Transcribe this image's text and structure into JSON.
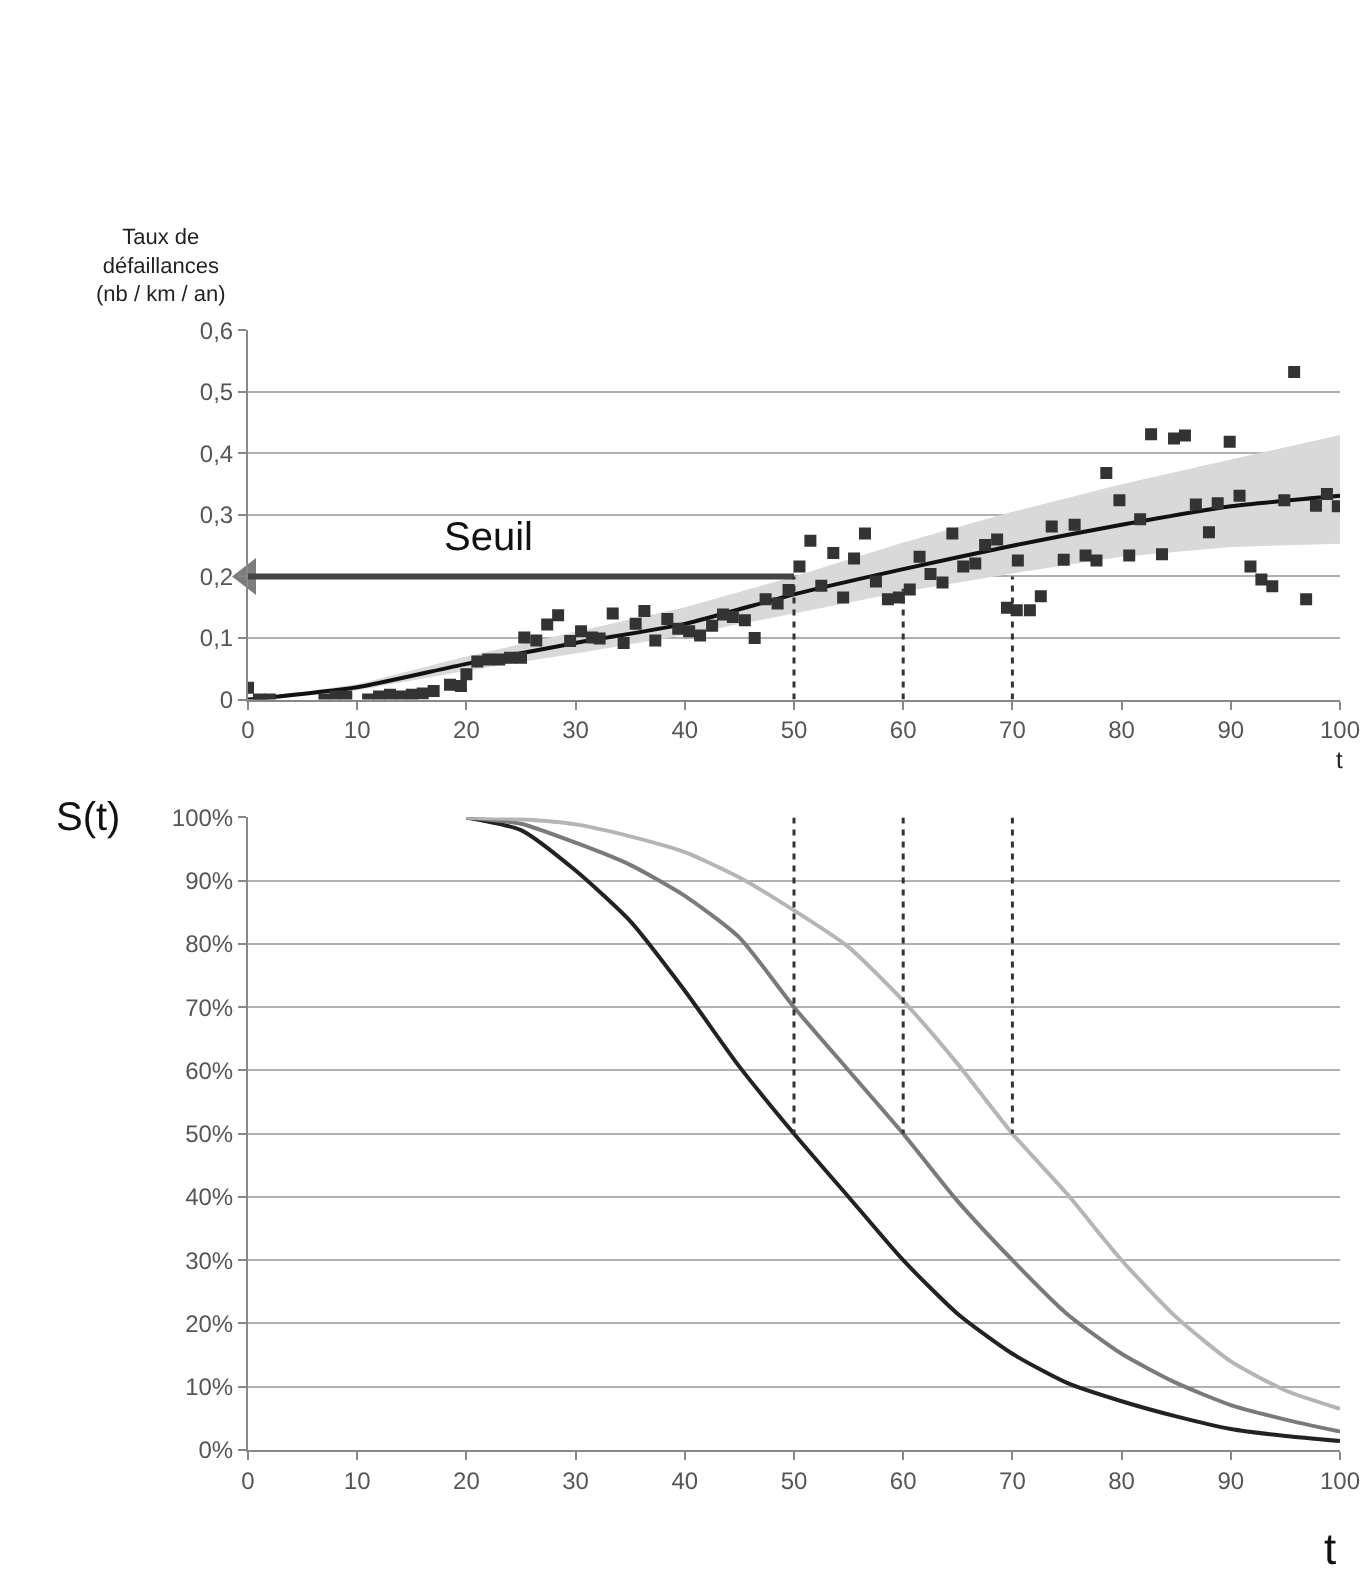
{
  "chart_data": [
    {
      "type": "scatter",
      "ylabel": "Taux de\ndéfaillances\n(nb / km / an)",
      "xlabel": "t",
      "xlim": [
        0,
        100
      ],
      "ylim": [
        0,
        0.6
      ],
      "xticks": [
        0,
        10,
        20,
        30,
        40,
        50,
        60,
        70,
        80,
        90,
        100
      ],
      "yticks": [
        0,
        {
          "value": 0.1,
          "label": "0,1"
        },
        {
          "value": 0.2,
          "label": "0,2"
        },
        {
          "value": 0.3,
          "label": "0,3"
        },
        {
          "value": 0.4,
          "label": "0,4"
        },
        {
          "value": 0.5,
          "label": "0,5"
        },
        {
          "value": 0.6,
          "label": "0,6"
        }
      ],
      "grid": "y",
      "annotations": [
        {
          "text": "Seuil",
          "x": 22,
          "y": 0.2
        }
      ],
      "series": [
        {
          "type": "line",
          "color": "#111111",
          "line_style": "solid",
          "marker": "none",
          "x": [
            0,
            10,
            20,
            30,
            40,
            50,
            60,
            70,
            80,
            90,
            100
          ],
          "values": [
            0,
            0.02,
            0.058,
            0.092,
            0.123,
            0.171,
            0.212,
            0.25,
            0.284,
            0.314,
            0.331
          ],
          "lower": [
            0,
            0.015,
            0.047,
            0.075,
            0.105,
            0.14,
            0.175,
            0.205,
            0.232,
            0.248,
            0.253
          ],
          "upper": [
            0,
            0.025,
            0.07,
            0.11,
            0.15,
            0.2,
            0.255,
            0.305,
            0.35,
            0.39,
            0.43
          ]
        },
        {
          "type": "scatter",
          "color": "#333333",
          "marker": "square",
          "x": [
            0,
            1,
            2,
            7,
            8,
            9,
            11,
            12,
            13,
            14,
            15,
            16,
            17,
            18.5,
            19.5,
            20,
            21,
            22,
            23,
            24,
            25,
            25.3,
            26.4,
            27.4,
            28.4,
            29.5,
            30.5,
            31.5,
            32.2,
            33.4,
            34.4,
            35.5,
            36.3,
            37.3,
            38.4,
            39.4,
            40.4,
            41.4,
            42.5,
            43.5,
            44.4,
            45.5,
            46.4,
            47.4,
            48.5,
            49.5,
            50.5,
            51.5,
            52.5,
            53.6,
            54.5,
            55.5,
            56.5,
            57.5,
            58.6,
            59.6,
            60.6,
            61.5,
            62.5,
            63.6,
            64.5,
            65.5,
            66.6,
            67.5,
            68.6,
            69.5,
            70.4,
            70.5,
            71.6,
            72.6,
            73.6,
            74.7,
            75.7,
            76.7,
            77.7,
            78.6,
            79.8,
            80.7,
            81.7,
            82.7,
            83.7,
            84.8,
            85.8,
            86.8,
            88,
            88.8,
            89.9,
            90.8,
            91.8,
            92.8,
            93.8,
            94.9,
            95.8,
            96.9,
            97.8,
            98.8,
            99.8
          ],
          "values": [
            0.019,
            0,
            0,
            0,
            0.005,
            0.005,
            0,
            0.005,
            0.008,
            0.005,
            0.008,
            0.01,
            0.014,
            0.024,
            0.022,
            0.041,
            0.062,
            0.065,
            0.065,
            0.068,
            0.068,
            0.101,
            0.096,
            0.122,
            0.137,
            0.095,
            0.111,
            0.101,
            0.099,
            0.14,
            0.092,
            0.123,
            0.144,
            0.096,
            0.131,
            0.115,
            0.111,
            0.104,
            0.12,
            0.138,
            0.134,
            0.129,
            0.1,
            0.163,
            0.156,
            0.178,
            0.216,
            0.258,
            0.185,
            0.238,
            0.166,
            0.229,
            0.27,
            0.192,
            0.163,
            0.166,
            0.179,
            0.232,
            0.204,
            0.19,
            0.27,
            0.216,
            0.221,
            0.251,
            0.26,
            0.149,
            0.145,
            0.226,
            0.145,
            0.168,
            0.281,
            0.227,
            0.284,
            0.234,
            0.226,
            0.368,
            0.324,
            0.234,
            0.293,
            0.431,
            0.236,
            0.424,
            0.429,
            0.317,
            0.272,
            0.319,
            0.419,
            0.331,
            0.216,
            0.195,
            0.184,
            0.324,
            0.532,
            0.163,
            0.315,
            0.334,
            0.314
          ]
        },
        {
          "type": "line",
          "color": "#444444",
          "line_style": "solid",
          "marker": "triangle",
          "x": [
            0,
            50
          ],
          "values": [
            0.2,
            0.2
          ]
        },
        {
          "type": "line",
          "color": "#333333",
          "line_style": "dotted",
          "marker": "none",
          "x": [
            50,
            50
          ],
          "values": [
            0,
            0.2
          ]
        },
        {
          "type": "line",
          "color": "#333333",
          "line_style": "dotted",
          "marker": "none",
          "x": [
            60,
            60
          ],
          "values": [
            0,
            0.18
          ]
        },
        {
          "type": "line",
          "color": "#333333",
          "line_style": "dotted",
          "marker": "none",
          "x": [
            70,
            70
          ],
          "values": [
            0,
            0.2
          ]
        }
      ]
    },
    {
      "type": "line",
      "ylabel": "S(t)",
      "xlabel": "t",
      "xlim": [
        0,
        100
      ],
      "ylim": [
        0,
        100
      ],
      "xticks": [
        0,
        10,
        20,
        30,
        40,
        50,
        60,
        70,
        80,
        90,
        100
      ],
      "yticks": [
        {
          "value": 0,
          "label": "0%"
        },
        {
          "value": 10,
          "label": "10%"
        },
        {
          "value": 20,
          "label": "20%"
        },
        {
          "value": 30,
          "label": "30%"
        },
        {
          "value": 40,
          "label": "40%"
        },
        {
          "value": 50,
          "label": "50%"
        },
        {
          "value": 60,
          "label": "60%"
        },
        {
          "value": 70,
          "label": "70%"
        },
        {
          "value": 80,
          "label": "80%"
        },
        {
          "value": 90,
          "label": "90%"
        },
        {
          "value": 100,
          "label": "100%"
        }
      ],
      "grid": "y",
      "series": [
        {
          "color": "#222222",
          "line_style": "solid",
          "marker": "none",
          "x": [
            20,
            25,
            30,
            35,
            40,
            45,
            50,
            55,
            60,
            65,
            70,
            75,
            80,
            85,
            90,
            95,
            100
          ],
          "values": [
            100,
            98,
            91.6,
            83.6,
            72.6,
            60.6,
            50,
            40,
            30,
            21.5,
            15.2,
            10.6,
            7.7,
            5.3,
            3.3,
            2.2,
            1.4
          ]
        },
        {
          "color": "#7a7a7a",
          "line_style": "solid",
          "marker": "none",
          "x": [
            20,
            25,
            30,
            35,
            40,
            45,
            50,
            55,
            60,
            65,
            70,
            75,
            80,
            85,
            90,
            95,
            100
          ],
          "values": [
            100,
            99,
            96,
            92.5,
            87.6,
            81,
            70,
            60,
            50,
            39.3,
            30,
            21.5,
            15.2,
            10.6,
            7.1,
            4.8,
            2.9
          ]
        },
        {
          "color": "#b5b5b5",
          "line_style": "solid",
          "marker": "none",
          "x": [
            20,
            25,
            30,
            35,
            40,
            45,
            50,
            55,
            60,
            65,
            70,
            75,
            80,
            85,
            90,
            95,
            100
          ],
          "values": [
            100,
            99.7,
            98.9,
            97,
            94.5,
            90.5,
            85.3,
            79.5,
            71,
            61,
            50,
            40.5,
            30,
            21,
            14,
            9.4,
            6.5
          ]
        },
        {
          "color": "#333333",
          "line_style": "dotted",
          "marker": "none",
          "x": [
            50,
            50
          ],
          "values": [
            100,
            50
          ]
        },
        {
          "color": "#333333",
          "line_style": "dotted",
          "marker": "none",
          "x": [
            60,
            60
          ],
          "values": [
            100,
            50
          ]
        },
        {
          "color": "#333333",
          "line_style": "dotted",
          "marker": "none",
          "x": [
            70,
            70
          ],
          "values": [
            100,
            50
          ]
        }
      ]
    }
  ]
}
